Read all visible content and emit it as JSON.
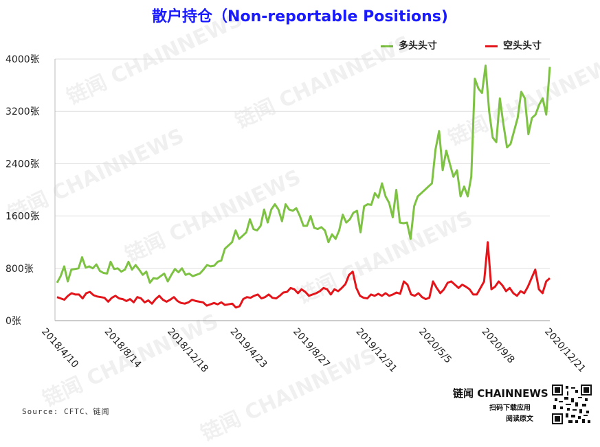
{
  "chart_data": {
    "type": "line",
    "title": "散户持仓（Non-reportable Positions)",
    "title_color": "#1a1aff",
    "ylim": [
      0,
      4000
    ],
    "yticks": [
      "0张",
      "800张",
      "1600张",
      "2400张",
      "3200张",
      "4000张"
    ],
    "xticks": [
      "2018/4/10",
      "2018/8/14",
      "2018/12/18",
      "2019/4/23",
      "2019/8/27",
      "2019/12/31",
      "2020/5/5",
      "2020/9/8",
      "2020/12/21"
    ],
    "legend_position": "top-right",
    "series": [
      {
        "name": "多头头寸",
        "color": "#7dc242",
        "values": [
          580,
          680,
          830,
          600,
          780,
          790,
          800,
          970,
          810,
          830,
          800,
          860,
          760,
          730,
          720,
          900,
          790,
          800,
          750,
          780,
          900,
          780,
          850,
          780,
          700,
          750,
          580,
          650,
          640,
          680,
          720,
          600,
          700,
          790,
          740,
          800,
          700,
          720,
          680,
          700,
          720,
          780,
          850,
          830,
          840,
          900,
          920,
          1100,
          1150,
          1200,
          1380,
          1250,
          1300,
          1350,
          1550,
          1400,
          1380,
          1450,
          1700,
          1500,
          1700,
          1780,
          1700,
          1520,
          1780,
          1700,
          1680,
          1720,
          1600,
          1450,
          1450,
          1600,
          1420,
          1400,
          1430,
          1380,
          1200,
          1320,
          1250,
          1380,
          1620,
          1500,
          1550,
          1650,
          1680,
          1350,
          1750,
          1780,
          1770,
          1950,
          1880,
          2100,
          1900,
          1800,
          1580,
          2000,
          1500,
          1490,
          1500,
          1250,
          1750,
          1900,
          1950,
          2000,
          2050,
          2100,
          2620,
          2900,
          2300,
          2600,
          2400,
          2200,
          2300,
          1900,
          2050,
          1900,
          2200,
          3700,
          3550,
          3480,
          3900,
          3200,
          2800,
          2730,
          3400,
          3000,
          2650,
          2700,
          2900,
          3100,
          3500,
          3400,
          2850,
          3100,
          3150,
          3300,
          3400,
          3150,
          3880
        ]
      },
      {
        "name": "空头头寸",
        "color": "#e3151a",
        "values": [
          360,
          340,
          320,
          380,
          420,
          400,
          400,
          340,
          420,
          440,
          390,
          370,
          360,
          350,
          290,
          350,
          380,
          340,
          330,
          300,
          330,
          280,
          360,
          340,
          280,
          310,
          260,
          330,
          380,
          320,
          290,
          320,
          360,
          300,
          270,
          260,
          280,
          320,
          300,
          290,
          280,
          230,
          250,
          270,
          250,
          280,
          240,
          250,
          260,
          200,
          220,
          330,
          360,
          350,
          380,
          400,
          340,
          360,
          400,
          350,
          340,
          380,
          430,
          440,
          500,
          480,
          420,
          480,
          440,
          380,
          400,
          420,
          450,
          500,
          480,
          400,
          480,
          450,
          500,
          560,
          700,
          750,
          500,
          380,
          350,
          340,
          400,
          380,
          410,
          380,
          420,
          380,
          400,
          430,
          410,
          600,
          550,
          400,
          380,
          420,
          360,
          330,
          350,
          600,
          500,
          420,
          480,
          580,
          600,
          550,
          500,
          550,
          520,
          480,
          400,
          400,
          500,
          600,
          1200,
          480,
          520,
          600,
          540,
          450,
          500,
          420,
          380,
          450,
          420,
          520,
          650,
          780,
          480,
          420,
          600,
          650
        ]
      }
    ]
  },
  "source": "Source: CFTC、链闻",
  "brand": "链闻 CHAINNEWS",
  "brand_sub1": "扫码下载应用",
  "brand_sub2": "阅读原文",
  "watermark": "链闻 CHAINNEWS",
  "grid_color": "#dddddd"
}
